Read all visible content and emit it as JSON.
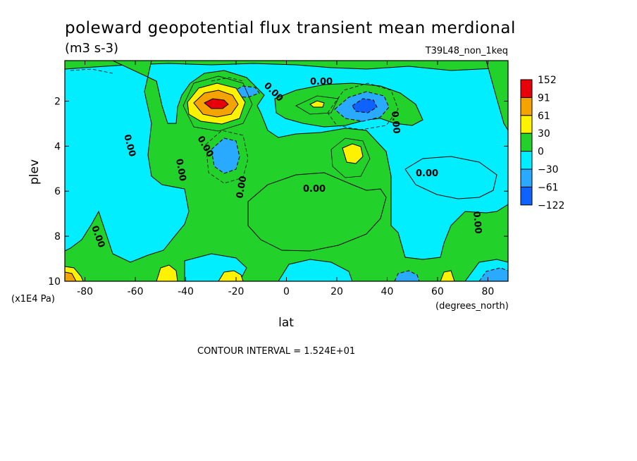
{
  "chart_data": {
    "type": "heatmap",
    "title": "poleward geopotential flux transient mean merdional",
    "units": "(m3 s-3)",
    "experiment": "T39L48_non_1keq",
    "xlabel": "lat",
    "x_units": "(degrees_north)",
    "ylabel": "plev",
    "y_units": "(x1E4 Pa)",
    "xlim": [
      -88,
      88
    ],
    "ylim": [
      10,
      0.2
    ],
    "x_ticks": [
      -80,
      -60,
      -40,
      -20,
      0,
      20,
      40,
      60,
      80
    ],
    "x_tick_labels": [
      "-80",
      "-60",
      "-40",
      "-20",
      "0",
      "20",
      "40",
      "60",
      "80"
    ],
    "y_ticks": [
      2,
      4,
      6,
      8,
      10
    ],
    "y_tick_labels": [
      "2",
      "4",
      "6",
      "8",
      "10"
    ],
    "contour_interval": "CONTOUR INTERVAL = 1.524E+01",
    "contour_label": "0.00",
    "colorbar": {
      "levels": [
        "152",
        "91",
        "61",
        "30",
        "0",
        "−30",
        "−61",
        "−122"
      ],
      "colors": [
        "#e8000b",
        "#f5a300",
        "#fff200",
        "#22d22a",
        "#00eeff",
        "#2aaaff",
        "#1062ff"
      ]
    },
    "features": [
      {
        "lat": -30,
        "plev": 2.0,
        "value": 120,
        "sign": "positive"
      },
      {
        "lat": -28,
        "plev": 4.2,
        "value": -45,
        "sign": "negative"
      },
      {
        "lat": 30,
        "plev": 2.3,
        "value": -65,
        "sign": "negative"
      },
      {
        "lat": 27,
        "plev": 4.2,
        "value": 40,
        "sign": "positive"
      },
      {
        "lat": -18,
        "plev": 1.4,
        "value": -40,
        "sign": "negative"
      },
      {
        "lat": 12,
        "plev": 2.0,
        "value": 35,
        "sign": "positive"
      },
      {
        "lat": -86,
        "plev": 9.9,
        "value": 70,
        "sign": "positive"
      },
      {
        "lat": -48,
        "plev": 9.8,
        "value": 35,
        "sign": "positive"
      },
      {
        "lat": -25,
        "plev": 9.8,
        "value": 30,
        "sign": "positive"
      },
      {
        "lat": 84,
        "plev": 9.8,
        "value": -50,
        "sign": "negative"
      }
    ]
  }
}
